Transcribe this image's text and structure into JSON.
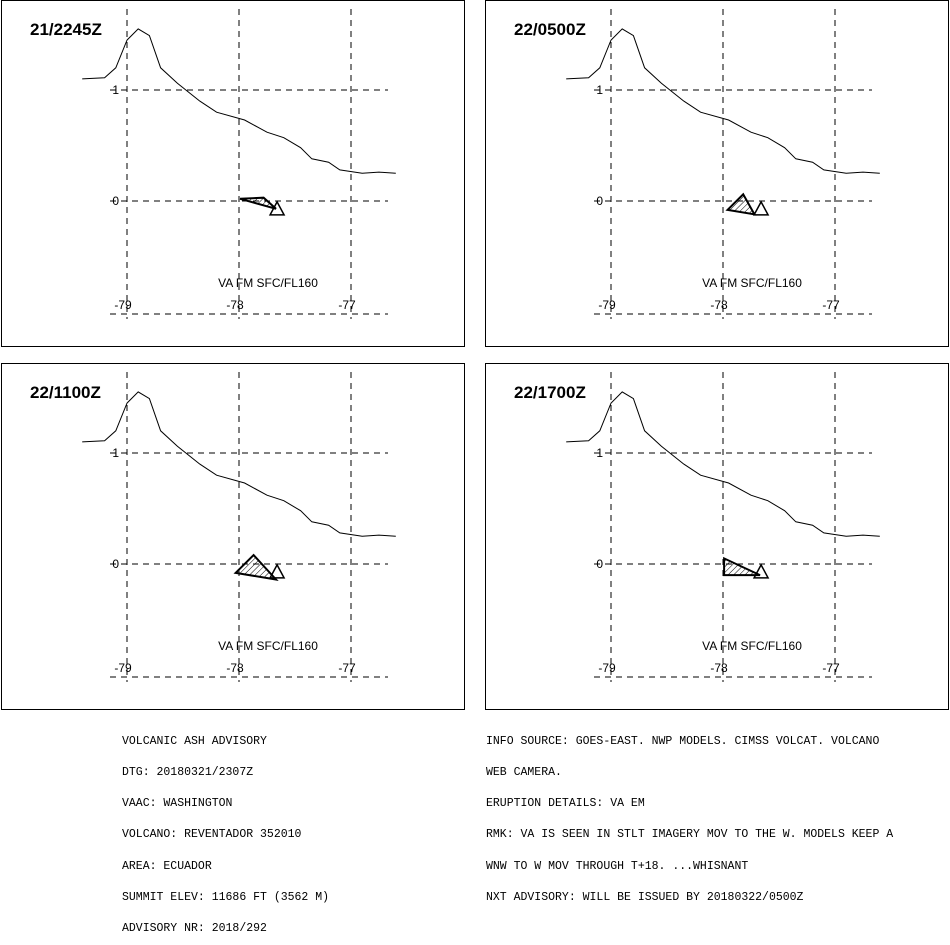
{
  "panels": [
    {
      "time": "21/2245Z",
      "label": "VA FM SFC/FL160",
      "ash_polygon": [
        [
          -77.99,
          0.02
        ],
        [
          -77.67,
          -0.07
        ],
        [
          -77.78,
          0.03
        ]
      ]
    },
    {
      "time": "22/0500Z",
      "label": "VA FM SFC/FL160",
      "ash_polygon": [
        [
          -77.96,
          -0.08
        ],
        [
          -77.72,
          -0.12
        ],
        [
          -77.82,
          0.06
        ]
      ]
    },
    {
      "time": "22/1100Z",
      "label": "VA FM SFC/FL160",
      "ash_polygon": [
        [
          -78.03,
          -0.08
        ],
        [
          -77.67,
          -0.14
        ],
        [
          -77.87,
          0.08
        ]
      ]
    },
    {
      "time": "22/1700Z",
      "label": "VA FM SFC/FL160",
      "ash_polygon": [
        [
          -77.99,
          -0.1
        ],
        [
          -77.67,
          -0.1
        ],
        [
          -77.99,
          0.05
        ]
      ]
    }
  ],
  "map": {
    "lon_labels": [
      "-79",
      "-78",
      "-77"
    ],
    "lat_labels": [
      "1",
      "0"
    ],
    "volcano_lonlat": [
      -77.66,
      -0.08
    ],
    "coastline": [
      [
        -79.4,
        1.1
      ],
      [
        -79.2,
        1.11
      ],
      [
        -79.1,
        1.2
      ],
      [
        -79.0,
        1.45
      ],
      [
        -78.9,
        1.55
      ],
      [
        -78.8,
        1.49
      ],
      [
        -78.7,
        1.2
      ],
      [
        -78.55,
        1.06
      ],
      [
        -78.35,
        0.9
      ],
      [
        -78.2,
        0.8
      ],
      [
        -77.95,
        0.73
      ],
      [
        -77.75,
        0.62
      ],
      [
        -77.6,
        0.57
      ],
      [
        -77.45,
        0.48
      ],
      [
        -77.35,
        0.38
      ],
      [
        -77.2,
        0.35
      ],
      [
        -77.1,
        0.28
      ],
      [
        -76.9,
        0.25
      ],
      [
        -76.75,
        0.26
      ],
      [
        -76.6,
        0.25
      ]
    ]
  },
  "footer": {
    "left": [
      "VOLCANIC ASH ADVISORY",
      "DTG: 20180321/2307Z",
      "VAAC: WASHINGTON",
      "VOLCANO: REVENTADOR 352010",
      "AREA: ECUADOR",
      "SUMMIT ELEV: 11686 FT (3562 M)",
      "ADVISORY NR: 2018/292"
    ],
    "right": [
      "INFO SOURCE: GOES-EAST. NWP MODELS. CIMSS VOLCAT. VOLCANO",
      "WEB CAMERA.",
      "ERUPTION DETAILS: VA EM",
      "RMK: VA IS SEEN IN STLT IMAGERY MOV TO THE W. MODELS KEEP A",
      "WNW TO W MOV THROUGH T+18. ...WHISNANT",
      "NXT ADVISORY: WILL BE ISSUED BY 20180322/0500Z"
    ]
  }
}
